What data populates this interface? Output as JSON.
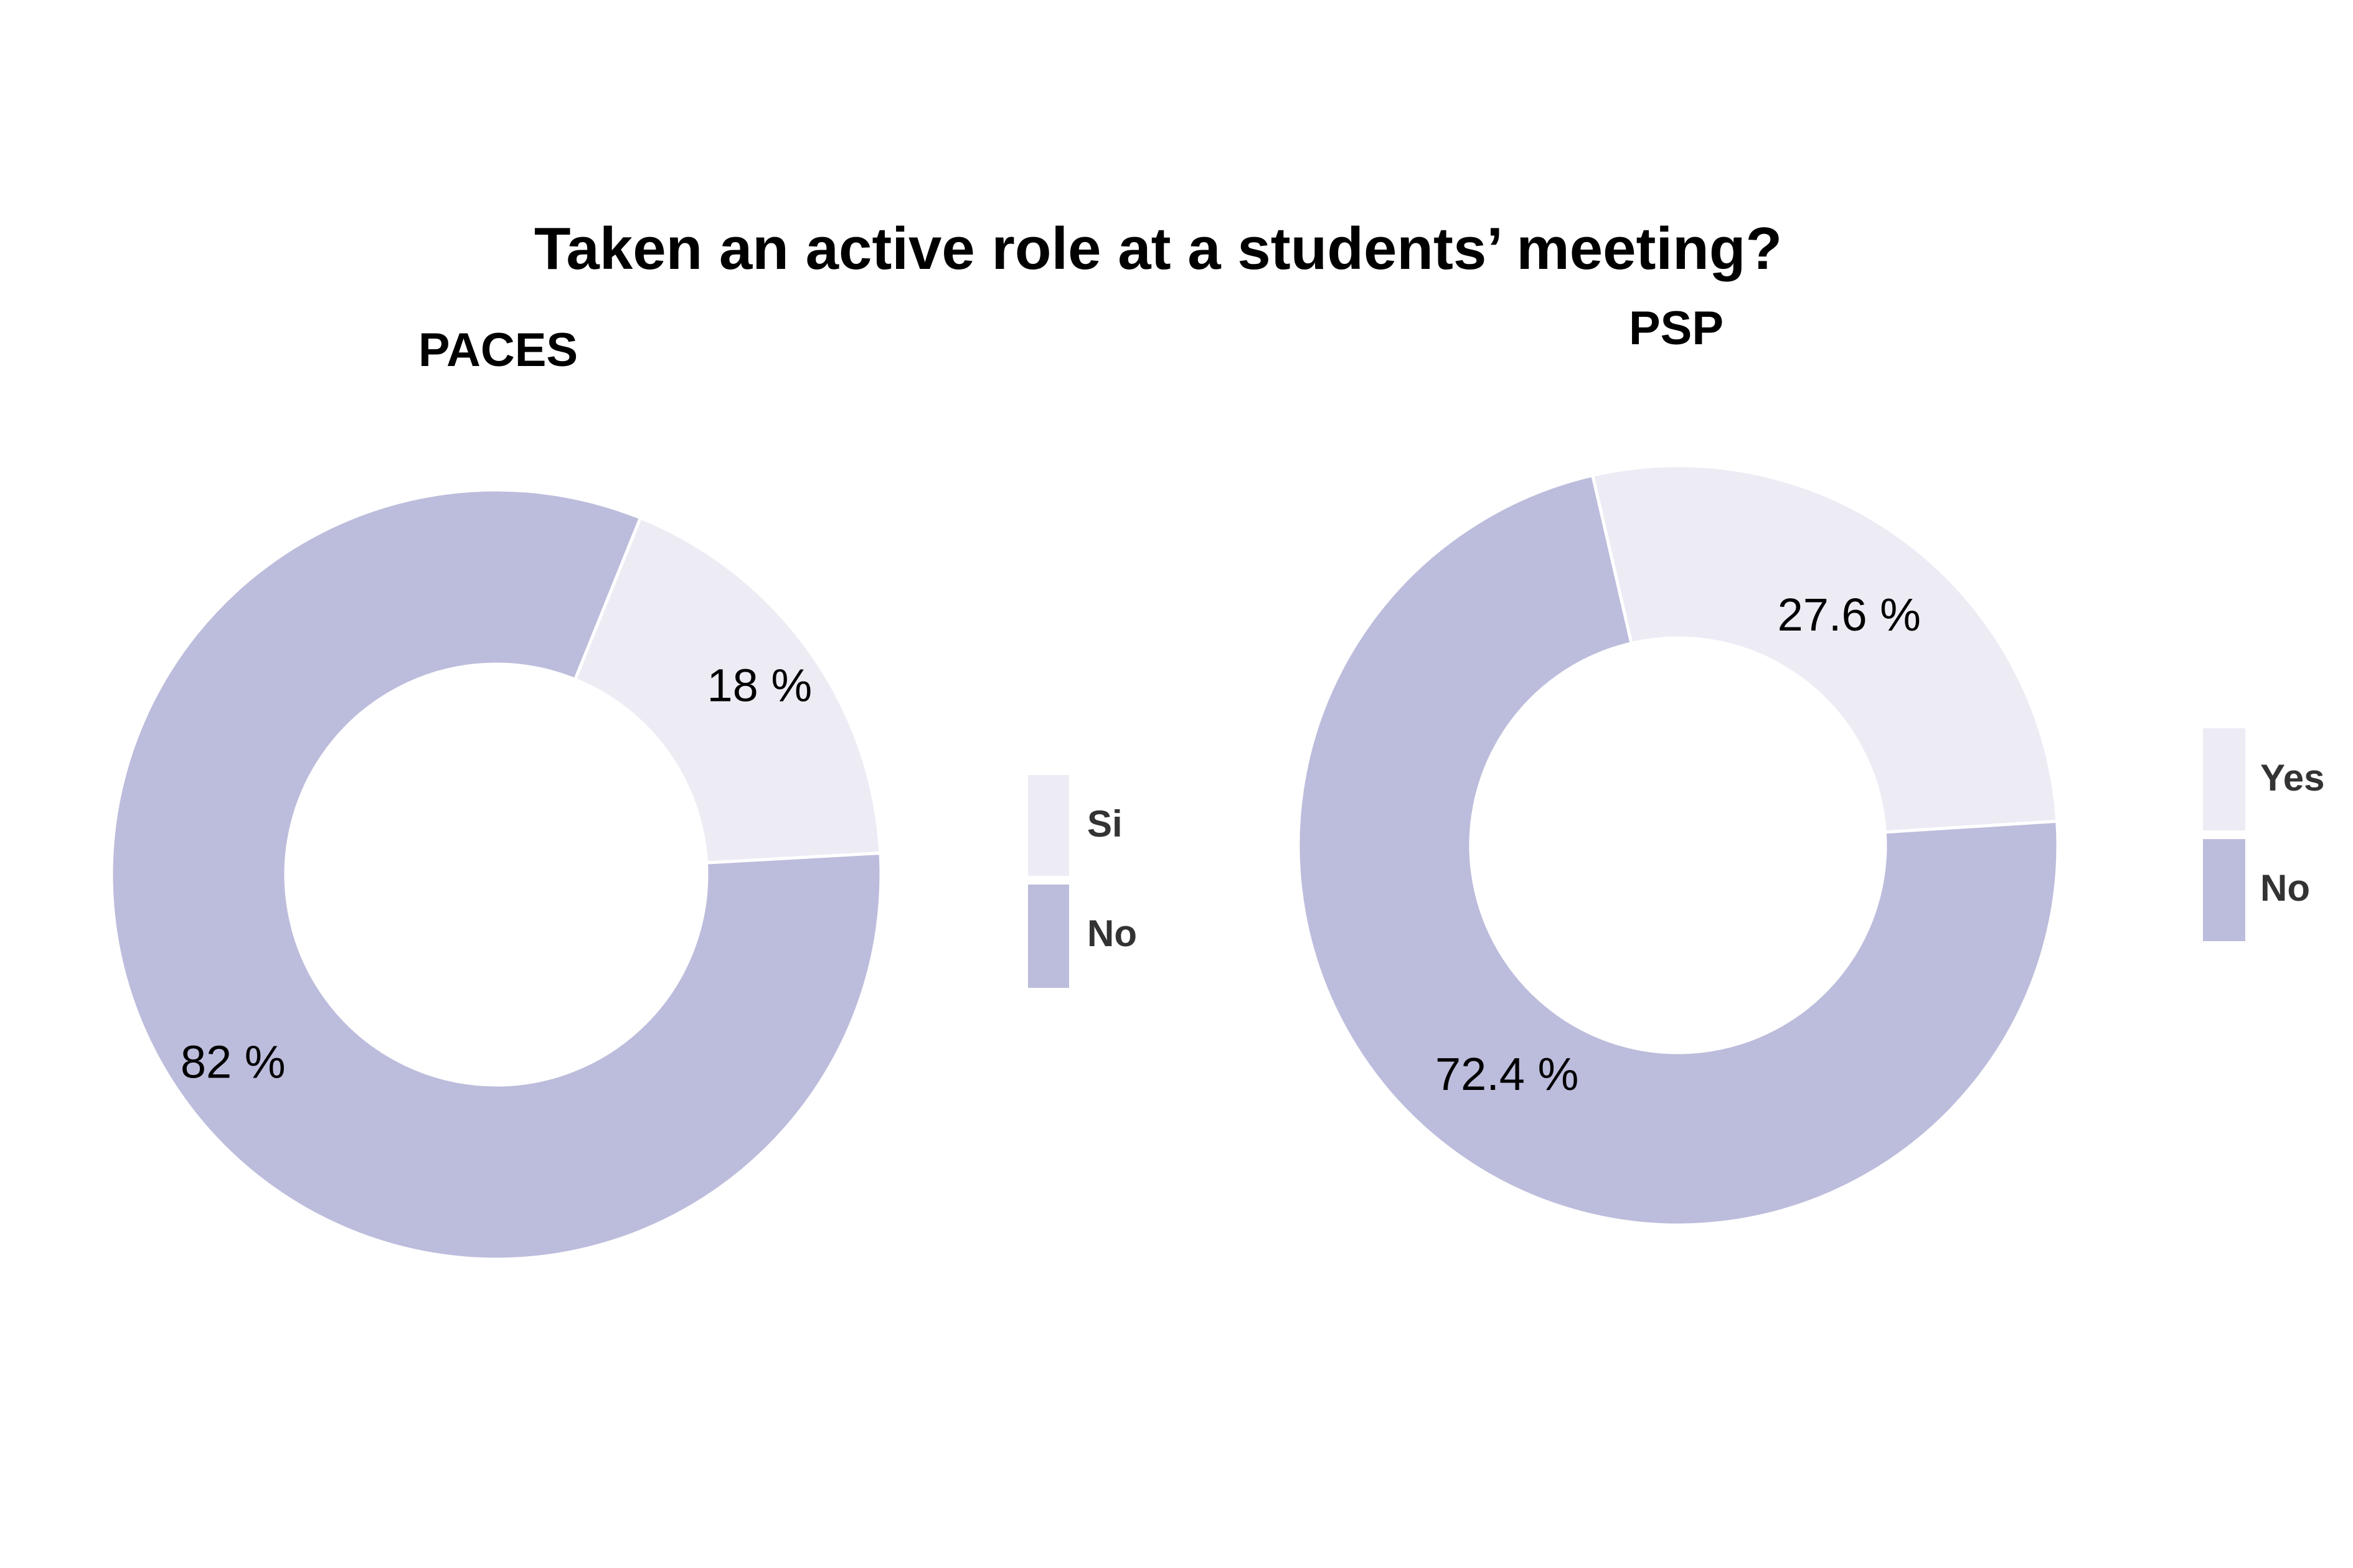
{
  "title": "Taken an active role at a students’ meeting?",
  "colors": {
    "light": "#EDECF5",
    "dark": "#BCBCDC",
    "separator": "#FFFFFF"
  },
  "chart_data": [
    {
      "type": "pie",
      "subtitle": "PACES",
      "slices": [
        {
          "category": "Si",
          "value": 18,
          "label": "18 %"
        },
        {
          "category": "No",
          "value": 82,
          "label": "82 %"
        }
      ],
      "legend": [
        "Si",
        "No"
      ],
      "legend_position": "right"
    },
    {
      "type": "pie",
      "subtitle": "PSP",
      "slices": [
        {
          "category": "Yes",
          "value": 27.6,
          "label": "27.6 %"
        },
        {
          "category": "No",
          "value": 72.4,
          "label": "72.4 %"
        }
      ],
      "legend": [
        "Yes",
        "No"
      ],
      "legend_position": "right"
    }
  ]
}
